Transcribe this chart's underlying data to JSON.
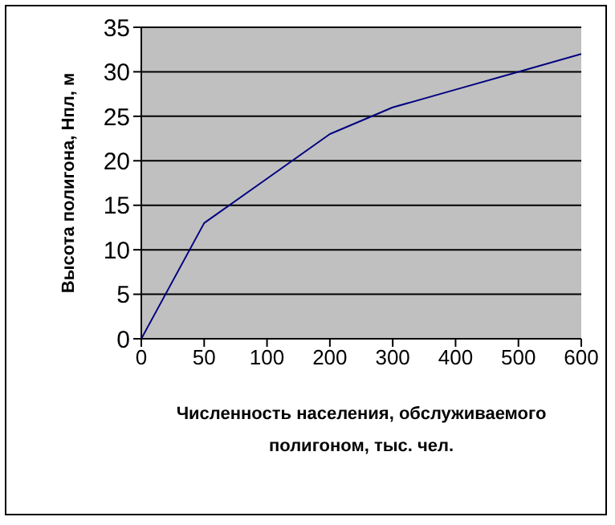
{
  "chart_data": {
    "type": "line",
    "xlabel": "Численность населения, обслуживаемого полигоном, тыс. чел.",
    "ylabel": "Высота полигона, Нпл, м",
    "categories": [
      "0",
      "50",
      "100",
      "200",
      "300",
      "400",
      "500",
      "600"
    ],
    "series": [
      {
        "color": "#000080",
        "values": [
          0,
          13,
          18,
          23,
          26,
          28,
          30,
          32
        ]
      }
    ],
    "ylim": [
      0,
      35
    ],
    "yticks": [
      0,
      5,
      10,
      15,
      20,
      25,
      30,
      35
    ],
    "grid": "y",
    "marker": "none",
    "line_style": "solid"
  }
}
